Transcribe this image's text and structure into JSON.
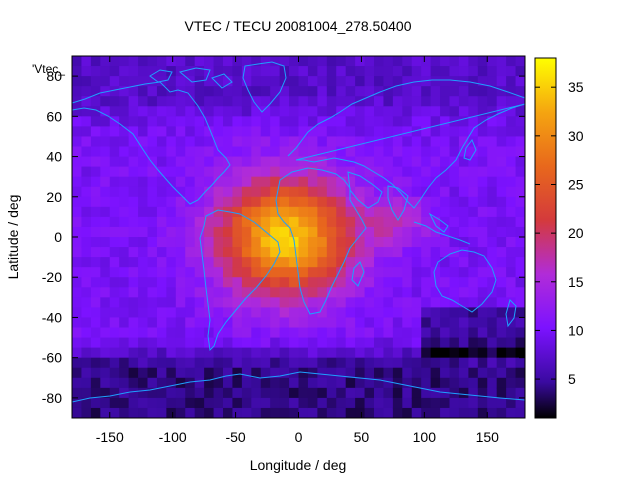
{
  "chart_data": {
    "type": "heatmap",
    "title": "VTEC / TECU 20081004_278.50400",
    "xlabel": "Longitude / deg",
    "ylabel": "Latitude / deg",
    "key_label": "'Vtec_",
    "xlim": [
      -180,
      180
    ],
    "ylim": [
      -90,
      90
    ],
    "xticks": [
      -150,
      -100,
      -50,
      0,
      50,
      100,
      150
    ],
    "yticks": [
      -80,
      -60,
      -40,
      -20,
      0,
      20,
      40,
      60,
      80
    ],
    "colorbar": {
      "range": [
        1,
        38
      ],
      "ticks": [
        5,
        10,
        15,
        20,
        25,
        30,
        35
      ]
    },
    "grid": false,
    "peak_region": {
      "lon": -10,
      "lat": 0,
      "max_tecu": 35
    },
    "background_tecu": 10,
    "overlay": "coastlines"
  }
}
